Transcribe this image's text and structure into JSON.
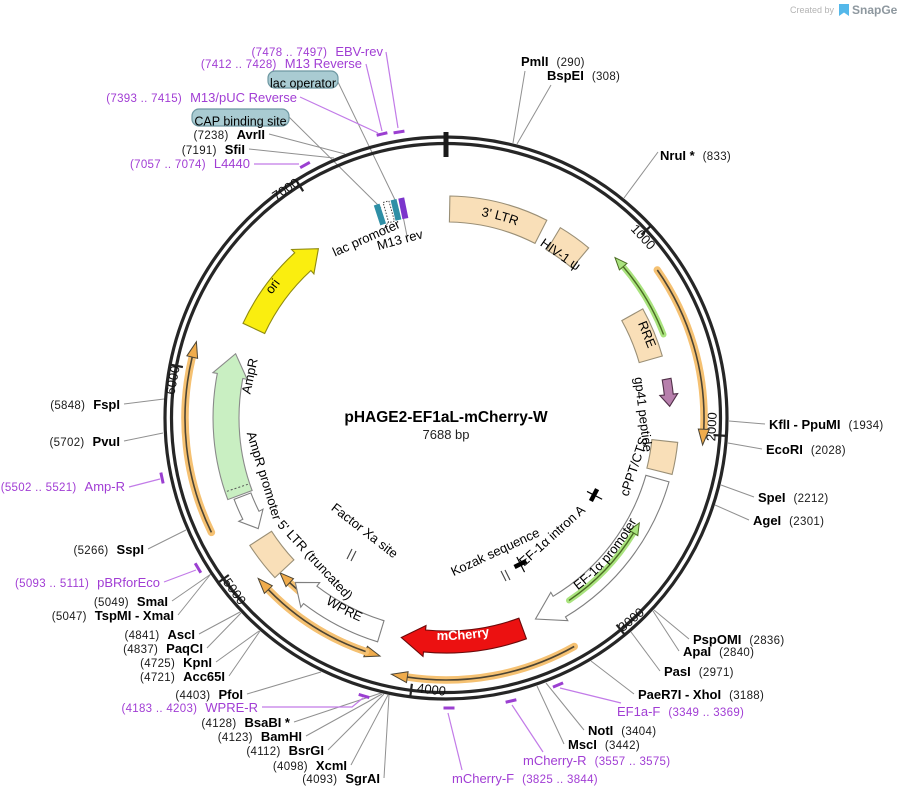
{
  "branding": {
    "created_by": "Created by",
    "brand": "SnapGene"
  },
  "plasmid": {
    "name": "pHAGE2-EF1aL-mCherry-W",
    "size": "7688 bp"
  },
  "ticks": [
    "1000",
    "2000",
    "3000",
    "4000",
    "5000",
    "6000",
    "7000"
  ],
  "features": [
    {
      "label": "3' LTR"
    },
    {
      "label": "HIV-1 ψ"
    },
    {
      "label": "RRE"
    },
    {
      "label": "gp41 peptide"
    },
    {
      "label": "cPPT/CTS"
    },
    {
      "label": "EF-1α promoter"
    },
    {
      "label": "EF-1α intron A"
    },
    {
      "label": "Kozak sequence"
    },
    {
      "label": "mCherry"
    },
    {
      "label": "WPRE"
    },
    {
      "label": "5' LTR (truncated)"
    },
    {
      "label": "Factor Xa site"
    },
    {
      "label": "AmpR promoter"
    },
    {
      "label": "AmpR"
    },
    {
      "label": "ori"
    },
    {
      "label": "lac promoter"
    },
    {
      "label": "M13 rev"
    }
  ],
  "badges": [
    {
      "label": "lac operator"
    },
    {
      "label": "CAP binding site"
    }
  ],
  "sites": [
    {
      "name": "PmlI",
      "pos": "(290)"
    },
    {
      "name": "BspEI",
      "pos": "(308)"
    },
    {
      "name": "NruI *",
      "pos": "(833)"
    },
    {
      "name": "KflI - PpuMI",
      "pos": "(1934)"
    },
    {
      "name": "EcoRI",
      "pos": "(2028)"
    },
    {
      "name": "SpeI",
      "pos": "(2212)"
    },
    {
      "name": "AgeI",
      "pos": "(2301)"
    },
    {
      "name": "PspOMI",
      "pos": "(2836)"
    },
    {
      "name": "ApaI",
      "pos": "(2840)"
    },
    {
      "name": "PasI",
      "pos": "(2971)"
    },
    {
      "name": "PaeR7I - XhoI",
      "pos": "(3188)"
    },
    {
      "name": "NotI",
      "pos": "(3404)"
    },
    {
      "name": "MscI",
      "pos": "(3442)"
    },
    {
      "name": "SgrAI",
      "pos": "(4093)"
    },
    {
      "name": "XcmI",
      "pos": "(4098)"
    },
    {
      "name": "BsrGI",
      "pos": "(4112)"
    },
    {
      "name": "BamHI",
      "pos": "(4123)"
    },
    {
      "name": "BsaBI *",
      "pos": "(4128)"
    },
    {
      "name": "PfoI",
      "pos": "(4403)"
    },
    {
      "name": "Acc65I",
      "pos": "(4721)"
    },
    {
      "name": "KpnI",
      "pos": "(4725)"
    },
    {
      "name": "PaqCI",
      "pos": "(4837)"
    },
    {
      "name": "AscI",
      "pos": "(4841)"
    },
    {
      "name": "TspMI - XmaI",
      "pos": "(5047)"
    },
    {
      "name": "SmaI",
      "pos": "(5049)"
    },
    {
      "name": "SspI",
      "pos": "(5266)"
    },
    {
      "name": "PvuI",
      "pos": "(5702)"
    },
    {
      "name": "FspI",
      "pos": "(5848)"
    },
    {
      "name": "SfiI",
      "pos": "(7191)"
    },
    {
      "name": "AvrII",
      "pos": "(7238)"
    }
  ],
  "primers": [
    {
      "name": "EBV-rev",
      "range": "(7478 .. 7497)"
    },
    {
      "name": "M13 Reverse",
      "range": "(7412 .. 7428)"
    },
    {
      "name": "M13/pUC Reverse",
      "range": "(7393 .. 7415)"
    },
    {
      "name": "L4440",
      "range": "(7057 .. 7074)"
    },
    {
      "name": "Amp-R",
      "range": "(5502 .. 5521)"
    },
    {
      "name": "pBRforEco",
      "range": "(5093 .. 5111)"
    },
    {
      "name": "WPRE-R",
      "range": "(4183 .. 4203)"
    },
    {
      "name": "mCherry-F",
      "range": "(3825 .. 3844)"
    },
    {
      "name": "mCherry-R",
      "range": "(3557 .. 3575)"
    },
    {
      "name": "EF1a-F",
      "range": "(3349 .. 3369)"
    }
  ],
  "colors": {
    "backbone": "#262626",
    "misc_feature": "#F9DFB8",
    "misc_stroke": "#9a8f76",
    "mcherry": "#EC1111",
    "mcherry_stroke": "#6b0a0a",
    "ampr": "#C9EFC2",
    "ampr_stroke": "#8a8a8a",
    "ori": "#FAEE0F",
    "ori_stroke": "#8f8a10",
    "orf": "#F5C172",
    "orf_core": "#4c4433",
    "orf_head": "#F0AC4C",
    "green_arrow": "#A9E37E",
    "green_core": "#4a6b22",
    "plum": "#B77FAC",
    "plum_stroke": "#503048",
    "teal": "#2E8FA6",
    "purple_block": "#7B35CC",
    "white_feature": "#ffffff",
    "white_stroke": "#7f7f7f",
    "primer": "#A13DD4",
    "primer_dash": "#9B3FD1",
    "primer_leader": "#C27BE8",
    "leader": "#909090",
    "badge": "#A9CBD2",
    "badge_stroke": "#6E98A2"
  }
}
